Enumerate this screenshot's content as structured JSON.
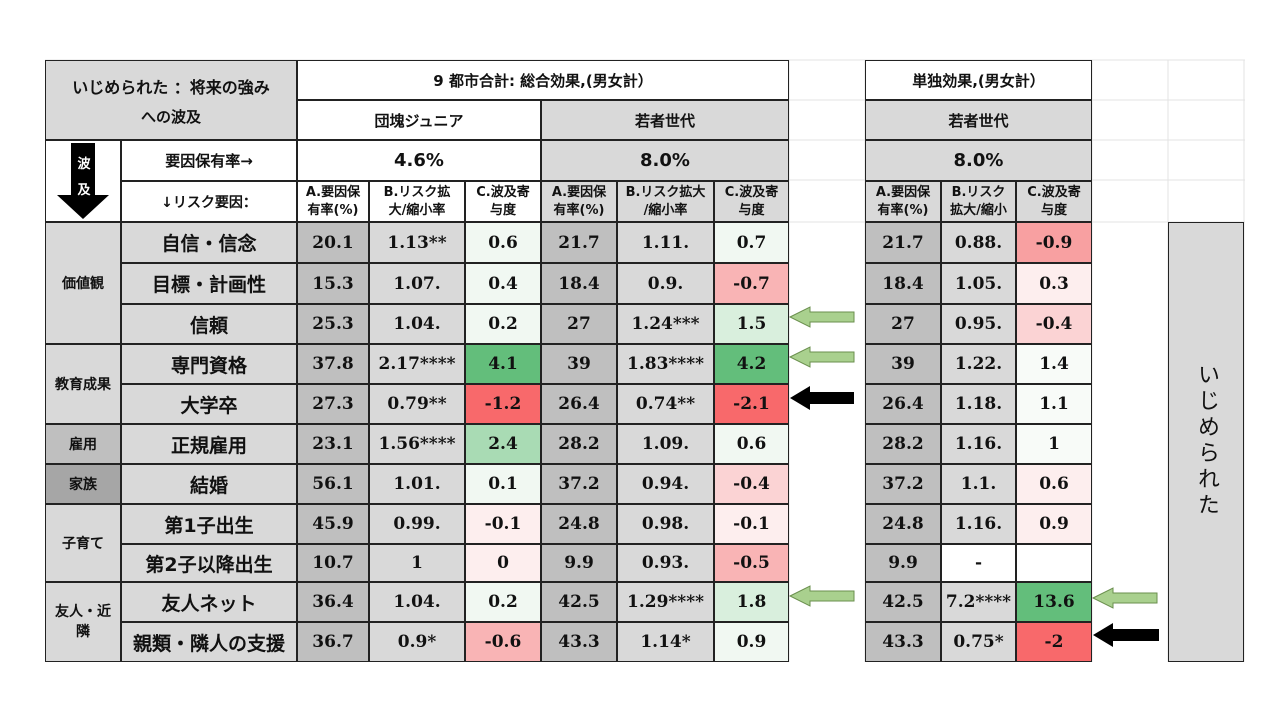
{
  "title_main": "いじめられた ：将来の強み",
  "title_sub": "への波及",
  "group_total": "9 都市合計: 総合効果,(男女計）",
  "group_single": "単独効果,(男女計）",
  "gen_dankai": "団塊ジュニア",
  "gen_young_total": "若者世代",
  "gen_young_single": "若者世代",
  "arrow_label_1": "波",
  "arrow_label_2": "及",
  "factor_rate_label": "要因保有率→",
  "risk_factor_label": "↓リスク要因：",
  "rate_dankai": "4.6%",
  "rate_young_total": "8.0%",
  "rate_young_single": "8.0%",
  "col_a_1": "A.要因保",
  "col_a_2": "有率(%)",
  "col_b_1": "B.リスク拡",
  "col_b_2": "大/縮小率",
  "col_c_1": "C.波及寄",
  "col_c_2": "与度",
  "col_a2_1": "A.要因保",
  "col_a2_2": "有率(%)",
  "col_b2_1": "B.リスク拡大",
  "col_b2_2": "/縮小率",
  "col_c2_1": "C.波及寄",
  "col_c2_2": "与度",
  "col_a3_1": "A.要因保",
  "col_a3_2": "有率(%)",
  "col_b3_1": "B.リスク",
  "col_b3_2": "拡大/縮小",
  "col_c3_1": "C.波及寄",
  "col_c3_2": "与度",
  "side_label": "いじめられた",
  "categories": [
    {
      "label": "価値観"
    },
    {
      "label": "教育成果"
    },
    {
      "label": "雇用"
    },
    {
      "label": "家族"
    },
    {
      "label": "子育て"
    },
    {
      "label": "友人・近隣"
    }
  ],
  "rows": [
    {
      "factor": "自信・信念",
      "d_a": "20.1",
      "d_b": "1.13**",
      "d_c": "0.6",
      "y_a": "21.7",
      "y_b": "1.11.",
      "y_c": "0.7",
      "s_a": "21.7",
      "s_b": "0.88.",
      "s_c": "-0.9"
    },
    {
      "factor": "目標・計画性",
      "d_a": "15.3",
      "d_b": "1.07.",
      "d_c": "0.4",
      "y_a": "18.4",
      "y_b": "0.9.",
      "y_c": "-0.7",
      "s_a": "18.4",
      "s_b": "1.05.",
      "s_c": "0.3"
    },
    {
      "factor": "信頼",
      "d_a": "25.3",
      "d_b": "1.04.",
      "d_c": "0.2",
      "y_a": "27",
      "y_b": "1.24***",
      "y_c": "1.5",
      "s_a": "27",
      "s_b": "0.95.",
      "s_c": "-0.4"
    },
    {
      "factor": "専門資格",
      "d_a": "37.8",
      "d_b": "2.17****",
      "d_c": "4.1",
      "y_a": "39",
      "y_b": "1.83****",
      "y_c": "4.2",
      "s_a": "39",
      "s_b": "1.22.",
      "s_c": "1.4"
    },
    {
      "factor": "大学卒",
      "d_a": "27.3",
      "d_b": "0.79**",
      "d_c": "-1.2",
      "y_a": "26.4",
      "y_b": "0.74**",
      "y_c": "-2.1",
      "s_a": "26.4",
      "s_b": "1.18.",
      "s_c": "1.1"
    },
    {
      "factor": "正規雇用",
      "d_a": "23.1",
      "d_b": "1.56****",
      "d_c": "2.4",
      "y_a": "28.2",
      "y_b": "1.09.",
      "y_c": "0.6",
      "s_a": "28.2",
      "s_b": "1.16.",
      "s_c": "1"
    },
    {
      "factor": "結婚",
      "d_a": "56.1",
      "d_b": "1.01.",
      "d_c": "0.1",
      "y_a": "37.2",
      "y_b": "0.94.",
      "y_c": "-0.4",
      "s_a": "37.2",
      "s_b": "1.1.",
      "s_c": "0.6"
    },
    {
      "factor": "第1子出生",
      "d_a": "45.9",
      "d_b": "0.99.",
      "d_c": "-0.1",
      "y_a": "24.8",
      "y_b": "0.98.",
      "y_c": "-0.1",
      "s_a": "24.8",
      "s_b": "1.16.",
      "s_c": "0.9"
    },
    {
      "factor": "第2子以降出生",
      "d_a": "10.7",
      "d_b": "1",
      "d_c": "0",
      "y_a": "9.9",
      "y_b": "0.93.",
      "y_c": "-0.5",
      "s_a": "9.9",
      "s_b": "-",
      "s_c": ""
    },
    {
      "factor": "友人ネット",
      "d_a": "36.4",
      "d_b": "1.04.",
      "d_c": "0.2",
      "y_a": "42.5",
      "y_b": "1.29****",
      "y_c": "1.8",
      "s_a": "42.5",
      "s_b": "7.2****",
      "s_c": "13.6"
    },
    {
      "factor": "親類・隣人の支援",
      "d_a": "36.7",
      "d_b": "0.9*",
      "d_c": "-0.6",
      "y_a": "43.3",
      "y_b": "1.14*",
      "y_c": "0.9",
      "s_a": "43.3",
      "s_b": "0.75*",
      "s_c": "-2"
    }
  ],
  "colors": {
    "strong_green": "#63be7b",
    "mid_green": "#a9dbb4",
    "light_green": "#d9efdd",
    "pale_green": "#f1f8f2",
    "strong_red": "#f8696b",
    "mid_red": "#f9b4b5",
    "light_red": "#fbd3d4",
    "pale_red": "#fdeeee",
    "arrow_green": "#a9d08e",
    "arrow_black": "#000000"
  }
}
